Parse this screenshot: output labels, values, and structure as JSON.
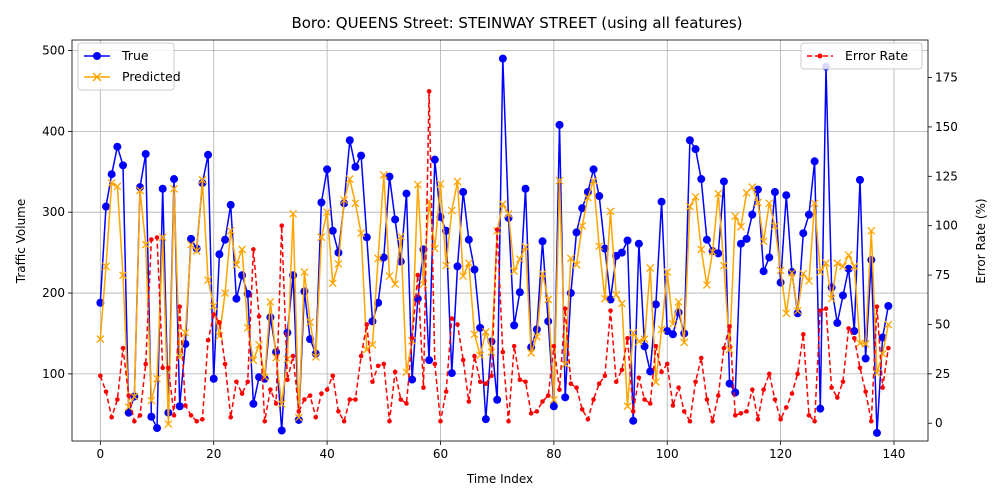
{
  "chart_data": {
    "type": "line",
    "title": "Boro: QUEENS Street: STEINWAY STREET (using all features)",
    "xlabel": "Time Index",
    "ylabel": "Traffic Volume",
    "ylabel_right": "Error Rate (%)",
    "xlim": [
      -5,
      146
    ],
    "ylim": [
      17,
      513
    ],
    "ylim_right": [
      -9,
      194
    ],
    "xticks": [
      0,
      20,
      40,
      60,
      80,
      100,
      120,
      140
    ],
    "yticks": [
      100,
      200,
      300,
      400,
      500
    ],
    "yticks_right": [
      0,
      25,
      50,
      75,
      100,
      125,
      150,
      175
    ],
    "grid": true,
    "legend_left": "upper-left",
    "legend_right": "upper-right",
    "series": [
      {
        "name": "True",
        "axis": "left",
        "color": "#0000ff",
        "marker": "circle",
        "values": [
          188,
          307,
          347,
          381,
          358,
          52,
          72,
          331,
          372,
          47,
          33,
          329,
          52,
          341,
          60,
          137,
          267,
          255,
          336,
          371,
          94,
          248,
          266,
          309,
          193,
          222,
          199,
          63,
          96,
          94,
          170,
          127,
          30,
          151,
          222,
          43,
          202,
          143,
          125,
          312,
          353,
          277,
          250,
          311,
          389,
          356,
          370,
          269,
          165,
          188,
          244,
          344,
          291,
          239,
          323,
          93,
          193,
          254,
          117,
          365,
          294,
          277,
          101,
          233,
          325,
          266,
          229,
          157,
          44,
          140,
          68,
          490,
          293,
          160,
          201,
          329,
          133,
          155,
          264,
          165,
          60,
          408,
          71,
          200,
          275,
          305,
          325,
          353,
          320,
          255,
          192,
          246,
          250,
          265,
          42,
          261,
          134,
          103,
          186,
          313,
          153,
          149,
          176,
          150,
          389,
          378,
          341,
          266,
          252,
          249,
          338,
          88,
          77,
          261,
          267,
          297,
          328,
          227,
          244,
          325,
          213,
          321,
          226,
          175,
          274,
          297,
          363,
          57,
          480,
          207,
          163,
          197,
          230,
          153,
          340,
          119,
          241,
          27,
          145,
          184
        ]
      },
      {
        "name": "Predicted",
        "axis": "left",
        "color": "#ffa500",
        "marker": "x",
        "values": [
          143,
          233,
          336,
          332,
          222,
          59,
          72,
          327,
          260,
          67,
          94,
          269,
          38,
          329,
          121,
          151,
          260,
          252,
          340,
          216,
          184,
          147,
          200,
          277,
          235,
          254,
          157,
          117,
          136,
          96,
          189,
          120,
          63,
          118,
          298,
          46,
          226,
          164,
          121,
          269,
          300,
          212,
          236,
          315,
          341,
          311,
          274,
          130,
          136,
          243,
          346,
          221,
          211,
          270,
          102,
          141,
          334,
          211,
          313,
          255,
          335,
          234,
          302,
          338,
          221,
          237,
          149,
          123,
          152,
          127,
          277,
          310,
          298,
          227,
          242,
          257,
          126,
          146,
          224,
          192,
          68,
          339,
          112,
          243,
          235,
          283,
          318,
          339,
          258,
          193,
          301,
          198,
          187,
          60,
          151,
          140,
          143,
          231,
          90,
          155,
          226,
          162,
          189,
          139,
          307,
          319,
          254,
          210,
          251,
          323,
          234,
          130,
          295,
          282,
          324,
          331,
          312,
          264,
          311,
          283,
          228,
          175,
          225,
          178,
          224,
          215,
          311,
          226,
          237,
          193,
          237,
          233,
          247,
          233,
          138,
          137,
          277,
          101,
          125,
          161
        ]
      },
      {
        "name": "Error Rate",
        "axis": "right",
        "color": "#ff0000",
        "marker": "dot",
        "linestyle": "dashed",
        "values": [
          24,
          16,
          3,
          12,
          38,
          14,
          1,
          4,
          30,
          93,
          94,
          28,
          28,
          4,
          59,
          9,
          4,
          1,
          2,
          42,
          55,
          51,
          30,
          3,
          21,
          15,
          21,
          88,
          54,
          1,
          17,
          10,
          100,
          22,
          34,
          6,
          12,
          14,
          3,
          15,
          17,
          24,
          6,
          1,
          12,
          12,
          34,
          50,
          21,
          29,
          30,
          1,
          26,
          12,
          10,
          43,
          75,
          18,
          168,
          30,
          1,
          16,
          53,
          50,
          32,
          11,
          34,
          21,
          20,
          24,
          98,
          36,
          1,
          39,
          22,
          21,
          5,
          6,
          11,
          14,
          39,
          17,
          58,
          20,
          18,
          7,
          2,
          12,
          20,
          24,
          57,
          21,
          27,
          43,
          6,
          23,
          12,
          10,
          39,
          26,
          30,
          9,
          18,
          6,
          1,
          21,
          33,
          12,
          1,
          14,
          38,
          49,
          4,
          5,
          6,
          17,
          2,
          17,
          25,
          12,
          2,
          8,
          15,
          25,
          45,
          4,
          1,
          57,
          58,
          18,
          13,
          21,
          48,
          43,
          28,
          16,
          1,
          59,
          18,
          38
        ]
      }
    ]
  }
}
